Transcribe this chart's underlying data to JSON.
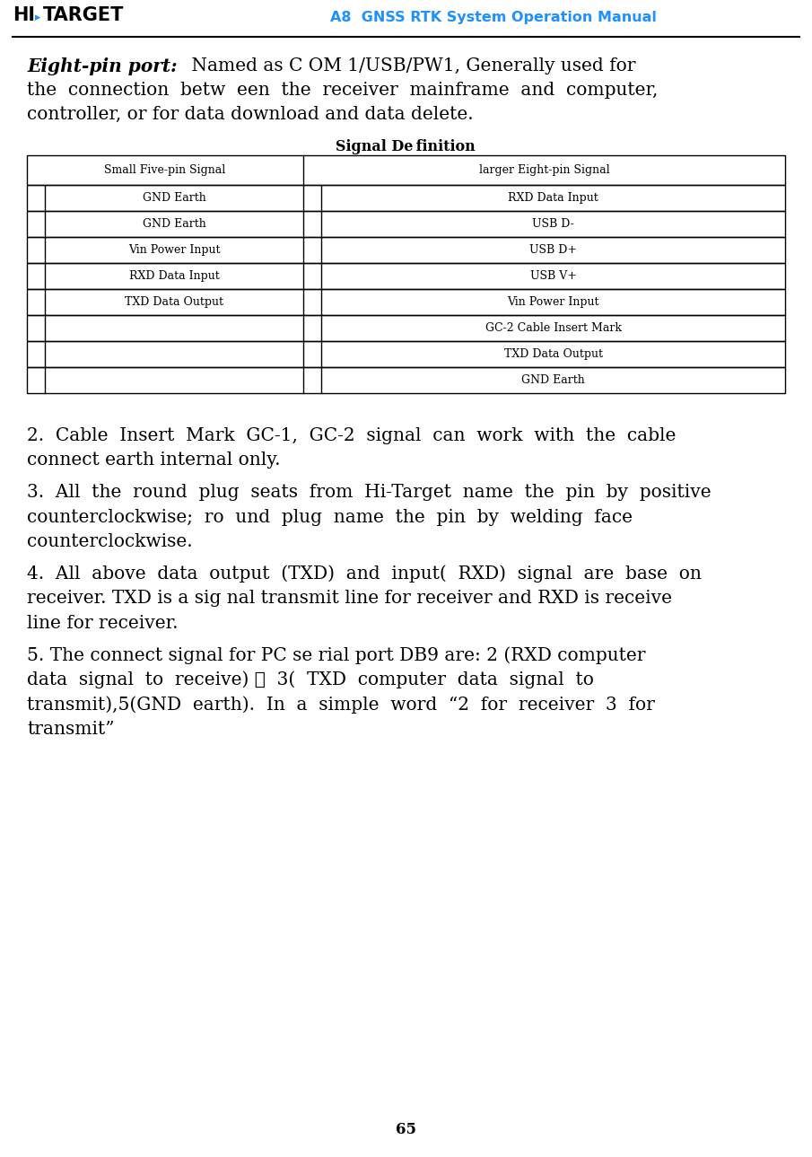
{
  "title_header": "A8  GNSS RTK System Operation Manual",
  "table_headers": [
    "Small Five-pin Signal",
    "larger Eight-pin Signal"
  ],
  "table_rows_left": [
    "GND Earth",
    "GND Earth",
    "Vin Power Input",
    "RXD Data Input",
    "TXD Data Output",
    "",
    "",
    ""
  ],
  "table_rows_right": [
    "RXD Data Input",
    "USB D-",
    "USB D+",
    "USB V+",
    "Vin Power Input",
    "GC-2 Cable Insert Mark",
    "TXD Data Output",
    "GND Earth"
  ],
  "note2_lines": [
    "2.  Cable  Insert  Mark  GC-1,  GC-2  signal  can  work  with  the  cable",
    "connect earth internal only."
  ],
  "note3_lines": [
    "3.  All  the  round  plug  seats  from  Hi-Target  name  the  pin  by  positive",
    "counterclockwise;  ro  und  plug  name  the  pin  by  welding  face",
    "counterclockwise."
  ],
  "note4_lines": [
    "4.  All  above  data  output  (TXD)  and  input(  RXD)  signal  are  base  on",
    "receiver. TXD is a sig nal transmit line for receiver and RXD is receive",
    "line for receiver."
  ],
  "note5_lines": [
    "5. The connect signal for PC se rial port DB9 are: 2 (RXD computer",
    "data  signal  to  receive) ，  3(  TXD  computer  data  signal  to",
    "transmit),5(GND  earth).  In  a  simple  word  “2  for  receiver  3  for",
    "transmit”"
  ],
  "page_number": "65",
  "header_color": "#1E90FF",
  "background_color": "#FFFFFF",
  "intro_bold": "Eight-pin port:",
  "intro_line1_rest": " Named as C OM 1/USB/PW1, Generally used for",
  "intro_line2": "the  connection  betw  een  the  receiver  mainframe  and  computer,",
  "intro_line3": "controller, or for data download and data delete.",
  "table_title": "Signal De finition"
}
